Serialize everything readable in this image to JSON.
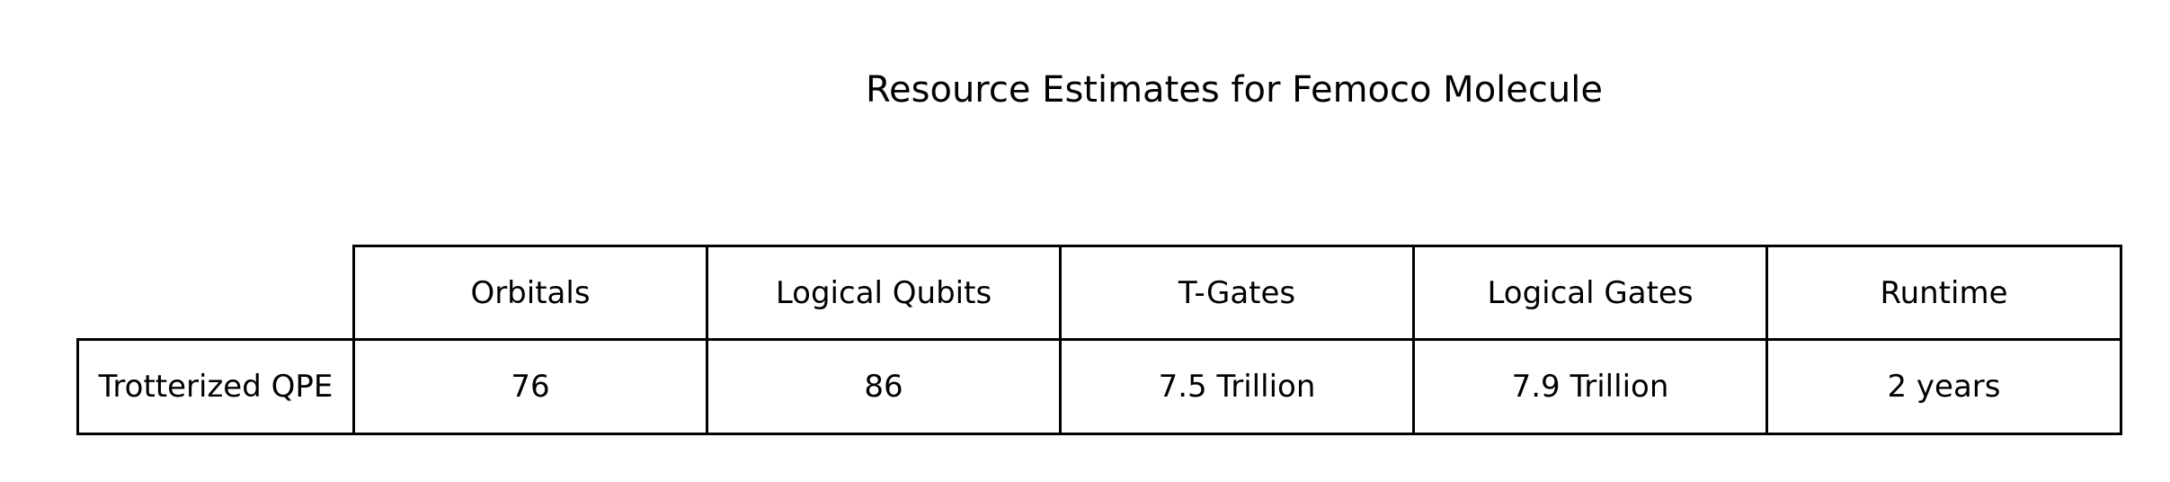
{
  "chart_data": {
    "type": "table",
    "title": "Resource Estimates for Femoco Molecule",
    "columns": [
      "Orbitals",
      "Logical Qubits",
      "T-Gates",
      "Logical Gates",
      "Runtime"
    ],
    "rows": [
      {
        "label": "Trotterized QPE",
        "values": [
          "76",
          "86",
          "7.5 Trillion",
          "7.9 Trillion",
          "2 years"
        ]
      }
    ]
  }
}
